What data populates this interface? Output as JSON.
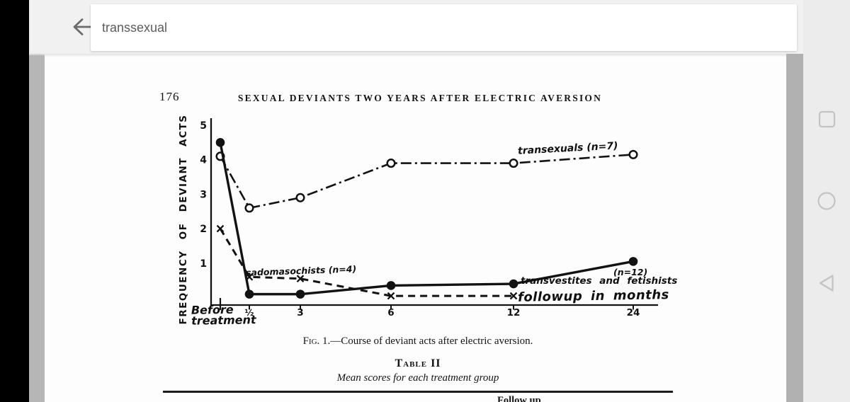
{
  "browser": {
    "search": {
      "query": "transsexual"
    },
    "icons": {
      "back": "back-arrow"
    }
  },
  "android_nav": {
    "buttons": [
      "recents",
      "home",
      "back"
    ]
  },
  "document": {
    "page_number": "176",
    "running_title": "SEXUAL DEVIANTS TWO YEARS AFTER ELECTRIC AVERSION",
    "figure_caption": {
      "label": "Fig. 1.",
      "text": "—Course of deviant acts after electric aversion."
    },
    "table": {
      "title": "Table II",
      "subtitle": "Mean scores for each treatment group",
      "partial_column_header": "Follow up"
    }
  },
  "chart_data": {
    "type": "line",
    "title": "",
    "xlabel": "followup in months",
    "ylabel": "FREQUENCY OF DEVIANT ACTS",
    "x_tick_labels": [
      "Before treatment",
      "½",
      "3",
      "6",
      "12",
      "24"
    ],
    "x_months": [
      0,
      0.5,
      3,
      6,
      12,
      24
    ],
    "y_ticks": [
      1,
      2,
      3,
      4,
      5
    ],
    "ylim": [
      0,
      5
    ],
    "grid": false,
    "legend_position": "inline-annotations",
    "series": [
      {
        "name": "transexuals",
        "label": "transexuals (n=7)",
        "n": 7,
        "line_style": "dash-dot",
        "marker": "open-circle",
        "values": [
          4.1,
          2.6,
          2.9,
          3.9,
          3.9,
          4.15
        ]
      },
      {
        "name": "sadomasochists",
        "label": "sadomasochists (n=4)",
        "n": 4,
        "line_style": "dashed",
        "marker": "x",
        "values": [
          2.0,
          0.6,
          0.55,
          0.05,
          0.05,
          null
        ]
      },
      {
        "name": "transvestites-fetishists",
        "label": "transvestites and fetishists",
        "label_n": "(n=12)",
        "n": 12,
        "line_style": "solid",
        "marker": "filled-circle",
        "values": [
          4.5,
          0.1,
          0.1,
          0.35,
          0.4,
          1.05
        ]
      }
    ],
    "annotations": {
      "before_line1": "Before",
      "before_line2": "treatment"
    }
  }
}
